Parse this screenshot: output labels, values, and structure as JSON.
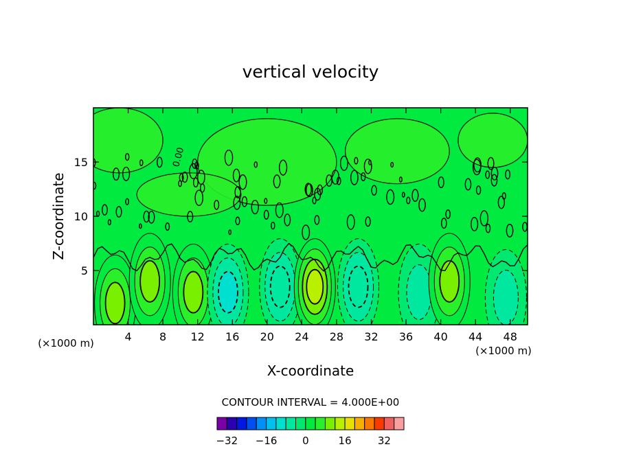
{
  "chart_data": {
    "type": "heatmap",
    "title": "vertical velocity",
    "xlabel": "X-coordinate",
    "ylabel": "Z-coordinate",
    "x_unit": "(×1000 m)",
    "y_unit": "(×1000 m)",
    "xlim": [
      0,
      50
    ],
    "ylim": [
      0,
      20
    ],
    "x_ticks": [
      4,
      8,
      12,
      16,
      20,
      24,
      28,
      32,
      36,
      40,
      44,
      48
    ],
    "y_ticks": [
      5,
      10,
      15
    ],
    "contour_label": "0.00",
    "contour_interval_text": "CONTOUR INTERVAL = 4.000E+00",
    "colorbar": {
      "levels": [
        -36,
        -32,
        -28,
        -24,
        -20,
        -16,
        -12,
        -8,
        -4,
        0,
        4,
        8,
        12,
        16,
        20,
        24,
        28,
        32,
        36
      ],
      "tick_values": [
        -32,
        -16,
        0,
        16,
        32
      ],
      "tick_labels": [
        "−32",
        "−16",
        "0",
        "16",
        "32"
      ],
      "colors": [
        "#7a00a8",
        "#2a00b0",
        "#0018e0",
        "#0050f0",
        "#0090f8",
        "#00c0f0",
        "#00e0d0",
        "#00e8a0",
        "#00e870",
        "#00ea40",
        "#2af02a",
        "#78f000",
        "#b8f000",
        "#e8e000",
        "#f8b000",
        "#f87800",
        "#f83a00",
        "#f06060",
        "#f8a0a0"
      ]
    },
    "features": [
      {
        "type": "updraft",
        "x": 2.5,
        "z": 2.0,
        "max": 9
      },
      {
        "type": "updraft",
        "x": 6.5,
        "z": 4.0,
        "max": 10
      },
      {
        "type": "updraft",
        "x": 11.5,
        "z": 3.0,
        "max": 8
      },
      {
        "type": "downdraft",
        "x": 15.5,
        "z": 3.0,
        "min": -10
      },
      {
        "type": "downdraft",
        "x": 21.5,
        "z": 3.5,
        "min": -8
      },
      {
        "type": "updraft",
        "x": 25.5,
        "z": 3.5,
        "max": 13
      },
      {
        "type": "downdraft",
        "x": 30.5,
        "z": 3.5,
        "min": -8
      },
      {
        "type": "downdraft",
        "x": 37.5,
        "z": 3.0,
        "min": -5
      },
      {
        "type": "updraft",
        "x": 41.0,
        "z": 4.0,
        "max": 10
      },
      {
        "type": "downdraft",
        "x": 47.5,
        "z": 2.5,
        "min": -5
      }
    ]
  }
}
